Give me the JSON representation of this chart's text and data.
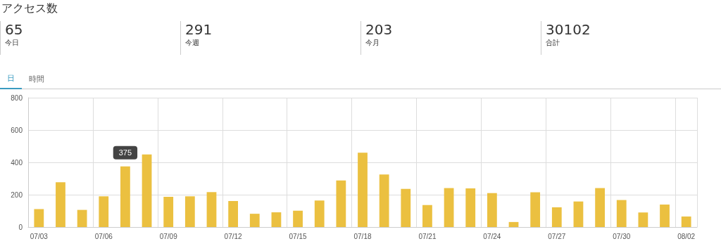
{
  "chart_data": {
    "type": "bar",
    "title": "アクセス数",
    "annotations": [
      "65",
      "今日",
      "291",
      "今週",
      "203",
      "今月",
      "30102",
      "合計",
      "日",
      "時間"
    ],
    "categories": [
      "07/03",
      null,
      null,
      "07/06",
      null,
      null,
      "07/09",
      null,
      null,
      "07/12",
      null,
      null,
      "07/15",
      null,
      null,
      "07/18",
      null,
      null,
      "07/21",
      null,
      null,
      "07/24",
      null,
      null,
      "07/27",
      null,
      null,
      "07/30",
      null,
      null,
      "08/02"
    ],
    "values": [
      111,
      277,
      106,
      190,
      375,
      449,
      187,
      190,
      216,
      161,
      82,
      91,
      101,
      164,
      288,
      460,
      325,
      236,
      136,
      241,
      239,
      210,
      31,
      215,
      122,
      158,
      241,
      167,
      90,
      139,
      65
    ],
    "value_labels": [
      null,
      null,
      null,
      null,
      "375",
      null,
      null,
      null,
      null,
      null,
      null,
      null,
      null,
      null,
      null,
      null,
      null,
      null,
      null,
      null,
      null,
      null,
      null,
      null,
      null,
      null,
      null,
      null,
      null,
      null,
      null
    ],
    "color": "#ebc040",
    "ylim": [
      0,
      800
    ],
    "yticks": [
      0,
      200,
      400,
      600,
      800
    ],
    "grid": true
  }
}
